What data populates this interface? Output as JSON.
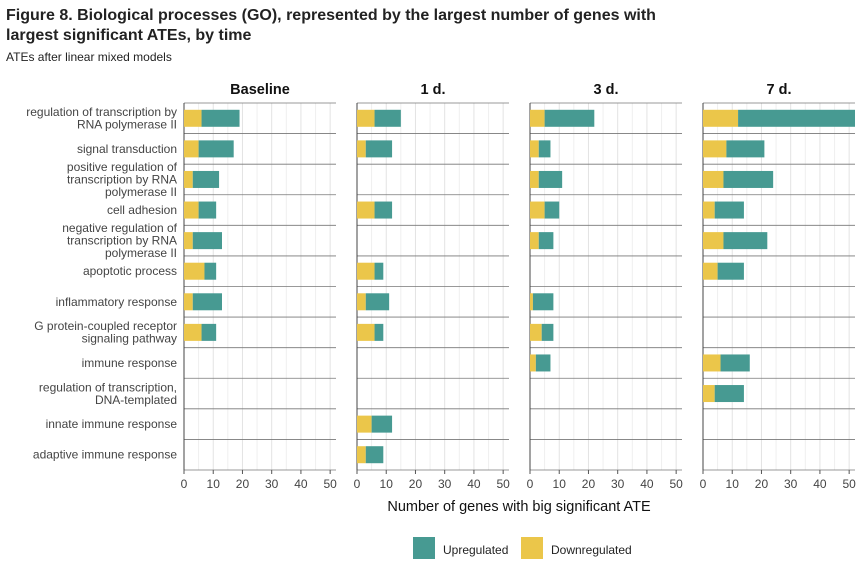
{
  "figure": {
    "title": "Figure 8. Biological processes (GO), represented by the largest number of genes with largest significant ATEs, by time",
    "subtitle": "ATEs after linear mixed models"
  },
  "chart_data": {
    "type": "bar",
    "orientation": "horizontal",
    "stacked": true,
    "xlabel": "Number of genes with big significant ATE",
    "xlim": [
      0,
      52
    ],
    "xticks": [
      0,
      10,
      20,
      30,
      40,
      50
    ],
    "grid": true,
    "legend_position": "bottom",
    "categories": [
      [
        "regulation of transcription by",
        "RNA polymerase II"
      ],
      [
        "signal transduction"
      ],
      [
        "positive regulation of",
        "transcription by RNA",
        "polymerase II"
      ],
      [
        "cell adhesion"
      ],
      [
        "negative regulation of",
        "transcription by RNA",
        "polymerase II"
      ],
      [
        "apoptotic process"
      ],
      [
        "inflammatory response"
      ],
      [
        "G protein-coupled receptor",
        "signaling pathway"
      ],
      [
        "immune response"
      ],
      [
        "regulation of transcription,",
        "DNA-templated"
      ],
      [
        "innate immune response"
      ],
      [
        "adaptive immune response"
      ]
    ],
    "series_order": [
      "Downregulated",
      "Upregulated"
    ],
    "legend": [
      {
        "name": "Upregulated",
        "color": "#479A92"
      },
      {
        "name": "Downregulated",
        "color": "#EBC64A"
      }
    ],
    "facets": [
      {
        "title": "Baseline",
        "series": [
          {
            "name": "Downregulated",
            "values": [
              6,
              5,
              3,
              5,
              3,
              7,
              3,
              6,
              null,
              null,
              null,
              null
            ]
          },
          {
            "name": "Upregulated",
            "values": [
              13,
              12,
              9,
              6,
              10,
              4,
              10,
              5,
              null,
              null,
              null,
              null
            ]
          }
        ]
      },
      {
        "title": "1 d.",
        "series": [
          {
            "name": "Downregulated",
            "values": [
              6,
              3,
              null,
              6,
              null,
              6,
              3,
              6,
              null,
              null,
              5,
              3
            ]
          },
          {
            "name": "Upregulated",
            "values": [
              9,
              9,
              null,
              6,
              null,
              3,
              8,
              3,
              null,
              null,
              7,
              6
            ]
          }
        ]
      },
      {
        "title": "3 d.",
        "series": [
          {
            "name": "Downregulated",
            "values": [
              5,
              3,
              3,
              5,
              3,
              null,
              1,
              4,
              2,
              null,
              null,
              null
            ]
          },
          {
            "name": "Upregulated",
            "values": [
              17,
              4,
              8,
              5,
              5,
              null,
              7,
              4,
              5,
              null,
              null,
              null
            ]
          }
        ]
      },
      {
        "title": "7 d.",
        "series": [
          {
            "name": "Downregulated",
            "values": [
              12,
              8,
              7,
              4,
              7,
              5,
              null,
              null,
              6,
              4,
              null,
              null
            ]
          },
          {
            "name": "Upregulated",
            "values": [
              40,
              13,
              17,
              10,
              15,
              9,
              null,
              null,
              10,
              10,
              null,
              null
            ]
          }
        ]
      }
    ]
  }
}
